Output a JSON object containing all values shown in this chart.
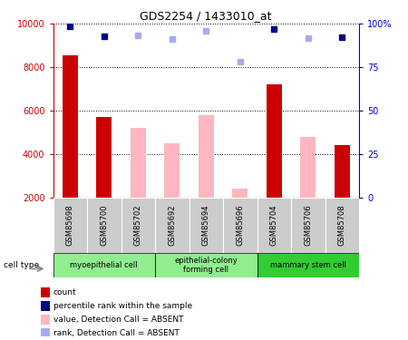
{
  "title": "GDS2254 / 1433010_at",
  "samples": [
    "GSM85698",
    "GSM85700",
    "GSM85702",
    "GSM85692",
    "GSM85694",
    "GSM85696",
    "GSM85704",
    "GSM85706",
    "GSM85708"
  ],
  "count_values": [
    8550,
    5700,
    null,
    null,
    null,
    null,
    7200,
    null,
    4400
  ],
  "absent_values": [
    null,
    null,
    5200,
    4500,
    5800,
    2400,
    null,
    4800,
    null
  ],
  "rank_present": [
    98.5,
    93.0,
    null,
    null,
    null,
    null,
    97.0,
    null,
    92.5
  ],
  "rank_absent": [
    null,
    null,
    93.5,
    91.0,
    96.0,
    78.0,
    null,
    92.0,
    null
  ],
  "ylim_left": [
    2000,
    10000
  ],
  "ylim_right": [
    0,
    100
  ],
  "yticks_left": [
    2000,
    4000,
    6000,
    8000,
    10000
  ],
  "yticks_right": [
    0,
    25,
    50,
    75,
    100
  ],
  "group_colors": [
    "#90EE90",
    "#90EE90",
    "#33CC33"
  ],
  "group_labels": [
    "myoepithelial cell",
    "epithelial-colony\nforming cell",
    "mammary stem cell"
  ],
  "group_ranges": [
    [
      0,
      3
    ],
    [
      3,
      6
    ],
    [
      6,
      9
    ]
  ],
  "bar_width": 0.45,
  "count_color": "#CC0000",
  "absent_bar_color": "#FFB6C1",
  "rank_present_color": "#00008B",
  "rank_absent_color": "#AAAAEE",
  "background_color": "#FFFFFF",
  "sample_box_color": "#CCCCCC",
  "left_axis_color": "#CC0000",
  "right_axis_color": "#0000CC",
  "legend_items": [
    {
      "color": "#CC0000",
      "label": "count"
    },
    {
      "color": "#00008B",
      "label": "percentile rank within the sample"
    },
    {
      "color": "#FFB6C1",
      "label": "value, Detection Call = ABSENT"
    },
    {
      "color": "#AAAAEE",
      "label": "rank, Detection Call = ABSENT"
    }
  ]
}
